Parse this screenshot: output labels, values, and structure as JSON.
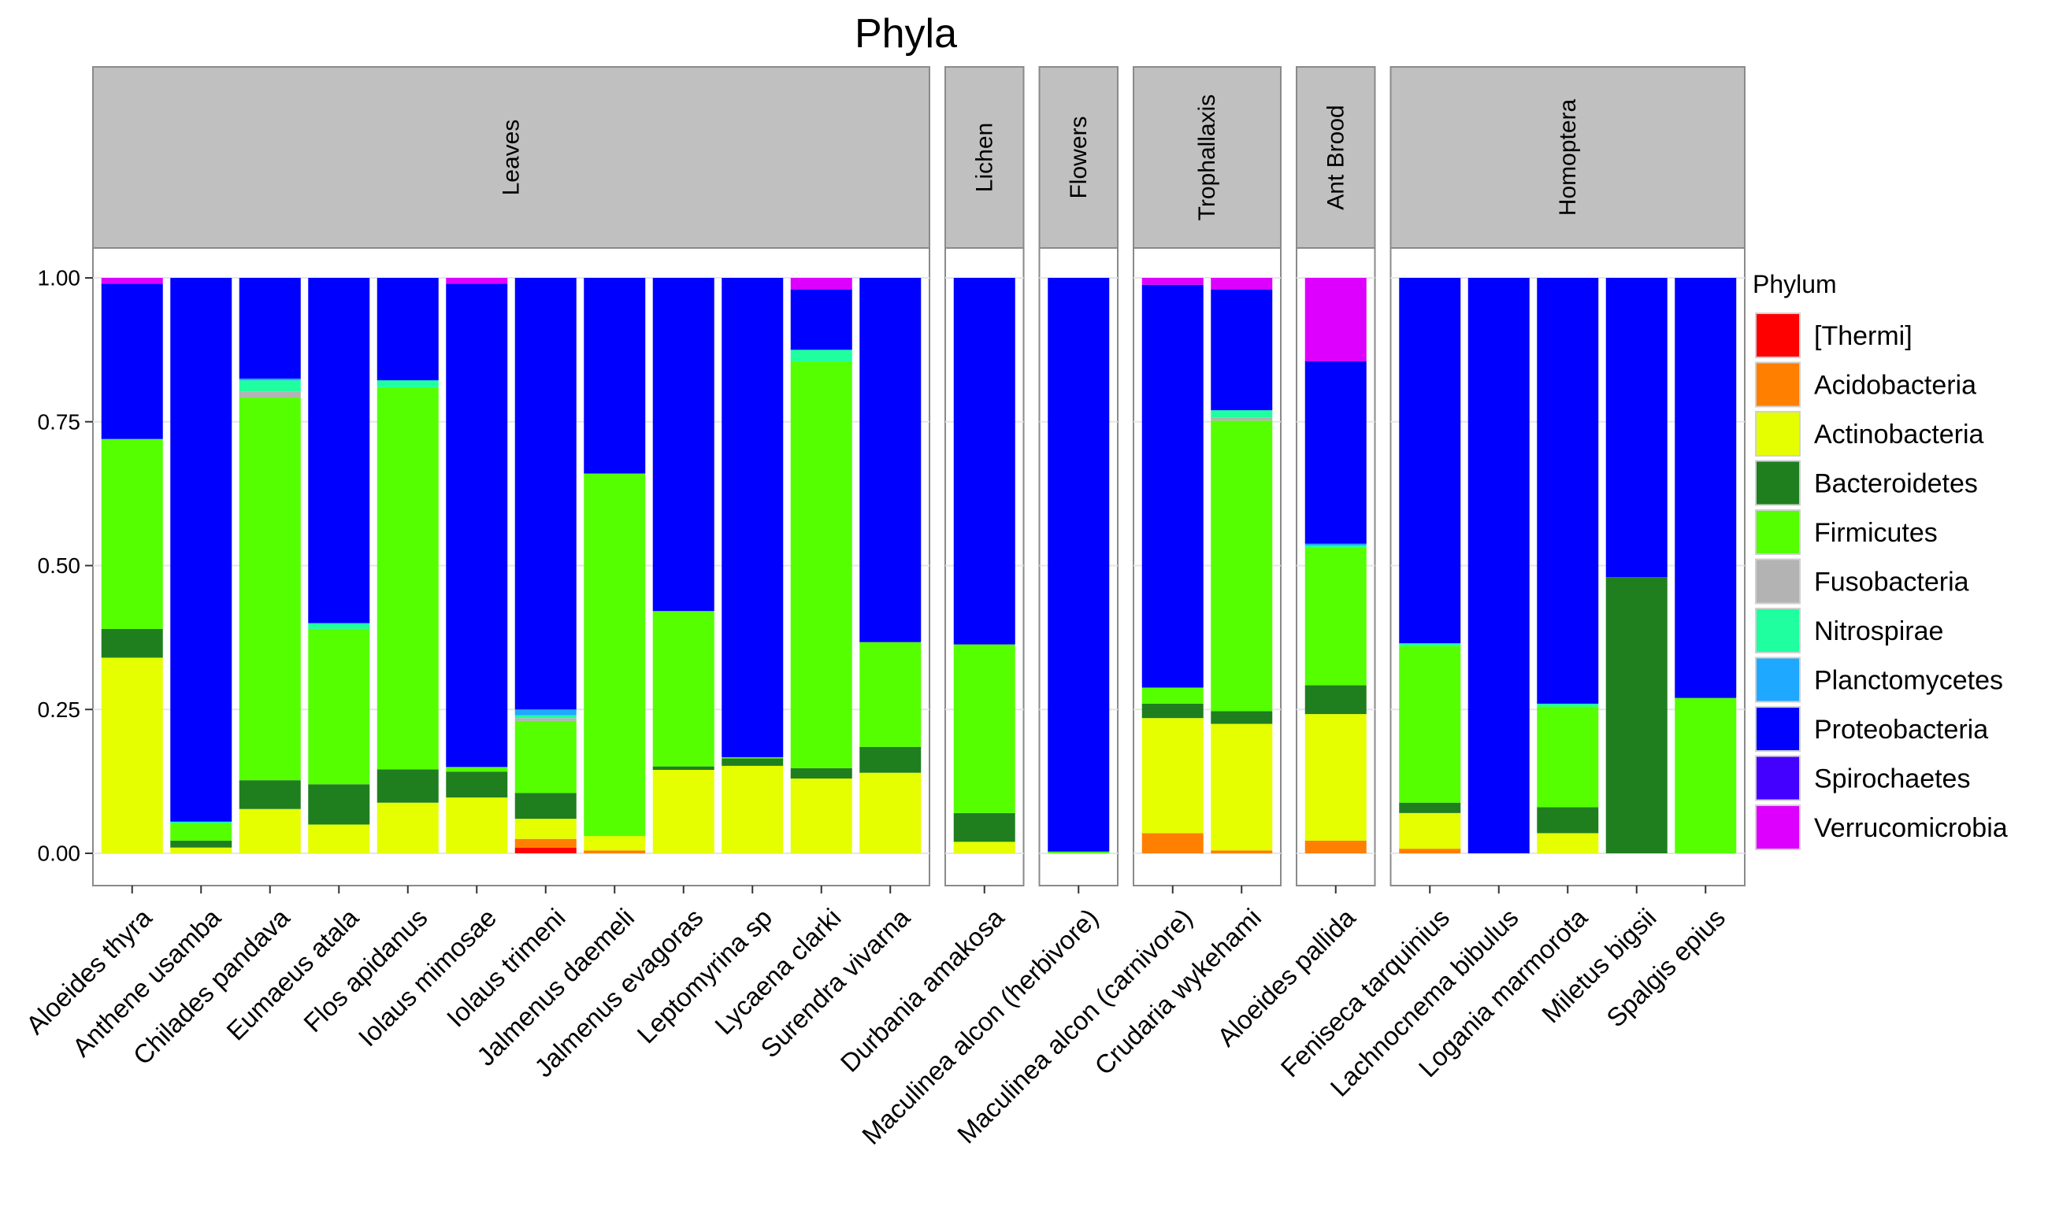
{
  "chart_data": {
    "type": "bar",
    "stacked": true,
    "title": "Phyla",
    "xlabel": "",
    "ylabel": "",
    "ylim": [
      0,
      1
    ],
    "yticks": [
      "0.00",
      "0.25",
      "0.50",
      "0.75",
      "1.00"
    ],
    "legend": {
      "title": "Phylum",
      "placement": "right",
      "entries": [
        {
          "name": "[Thermi]",
          "color": "#ff0000"
        },
        {
          "name": "Acidobacteria",
          "color": "#ff7f00"
        },
        {
          "name": "Actinobacteria",
          "color": "#e5ff00"
        },
        {
          "name": "Bacteroidetes",
          "color": "#1f7f1f"
        },
        {
          "name": "Firmicutes",
          "color": "#55ff00"
        },
        {
          "name": "Fusobacteria",
          "color": "#b3b3b3"
        },
        {
          "name": "Nitrospirae",
          "color": "#1fffa0"
        },
        {
          "name": "Planctomycetes",
          "color": "#1fa8ff"
        },
        {
          "name": "Proteobacteria",
          "color": "#0000ff"
        },
        {
          "name": "Spirochaetes",
          "color": "#4400ff"
        },
        {
          "name": "Verrucomicrobia",
          "color": "#dd00ff"
        }
      ]
    },
    "panels": [
      {
        "label": "Leaves",
        "samples": [
          {
            "name": "Aloeides thyra",
            "values": {
              "Actinobacteria": 0.34,
              "Bacteroidetes": 0.05,
              "Firmicutes": 0.33,
              "Proteobacteria": 0.27,
              "Verrucomicrobia": 0.01
            }
          },
          {
            "name": "Anthene usamba",
            "values": {
              "Actinobacteria": 0.01,
              "Bacteroidetes": 0.012,
              "Firmicutes": 0.03,
              "Nitrospirae": 0.003,
              "Proteobacteria": 0.945
            }
          },
          {
            "name": "Chilades pandava",
            "values": {
              "Actinobacteria": 0.077,
              "Bacteroidetes": 0.05,
              "Firmicutes": 0.665,
              "Fusobacteria": 0.01,
              "Nitrospirae": 0.02,
              "Planctomycetes": 0.003,
              "Proteobacteria": 0.175
            }
          },
          {
            "name": "Eumaeus atala",
            "values": {
              "Actinobacteria": 0.05,
              "Bacteroidetes": 0.07,
              "Firmicutes": 0.27,
              "Nitrospirae": 0.01,
              "Proteobacteria": 0.6
            }
          },
          {
            "name": "Flos apidanus",
            "values": {
              "Actinobacteria": 0.088,
              "Bacteroidetes": 0.058,
              "Firmicutes": 0.664,
              "Nitrospirae": 0.012,
              "Proteobacteria": 0.178
            }
          },
          {
            "name": "Iolaus mimosae",
            "values": {
              "Actinobacteria": 0.097,
              "Bacteroidetes": 0.045,
              "Firmicutes": 0.008,
              "Proteobacteria": 0.84,
              "Verrucomicrobia": 0.01
            }
          },
          {
            "name": "Iolaus trimeni",
            "values": {
              "[Thermi]": 0.01,
              "Acidobacteria": 0.015,
              "Actinobacteria": 0.035,
              "Bacteroidetes": 0.045,
              "Firmicutes": 0.125,
              "Fusobacteria": 0.005,
              "Nitrospirae": 0.005,
              "Planctomycetes": 0.01,
              "Proteobacteria": 0.75
            }
          },
          {
            "name": "Jalmenus daemeli",
            "values": {
              "Acidobacteria": 0.005,
              "Actinobacteria": 0.025,
              "Firmicutes": 0.63,
              "Proteobacteria": 0.34
            }
          },
          {
            "name": "Jalmenus evagoras",
            "values": {
              "Actinobacteria": 0.145,
              "Bacteroidetes": 0.006,
              "Firmicutes": 0.27,
              "Proteobacteria": 0.579
            }
          },
          {
            "name": "Leptomyrina sp",
            "values": {
              "Actinobacteria": 0.152,
              "Bacteroidetes": 0.013,
              "Firmicutes": 0.002,
              "Proteobacteria": 0.833
            }
          },
          {
            "name": "Lycaena clarki",
            "values": {
              "Actinobacteria": 0.13,
              "Bacteroidetes": 0.018,
              "Firmicutes": 0.707,
              "Nitrospirae": 0.02,
              "Proteobacteria": 0.105,
              "Verrucomicrobia": 0.02
            }
          },
          {
            "name": "Surendra vivarna",
            "values": {
              "Actinobacteria": 0.14,
              "Bacteroidetes": 0.045,
              "Firmicutes": 0.182,
              "Proteobacteria": 0.633
            }
          }
        ]
      },
      {
        "label": "Lichen",
        "samples": [
          {
            "name": "Durbania amakosa",
            "values": {
              "Actinobacteria": 0.02,
              "Bacteroidetes": 0.05,
              "Firmicutes": 0.293,
              "Proteobacteria": 0.637
            }
          }
        ]
      },
      {
        "label": "Flowers",
        "samples": [
          {
            "name": "Maculinea alcon (herbivore)",
            "values": {
              "Firmicutes": 0.003,
              "Proteobacteria": 0.997
            }
          }
        ]
      },
      {
        "label": "Trophallaxis",
        "samples": [
          {
            "name": "Maculinea alcon (carnivore)",
            "values": {
              "Acidobacteria": 0.035,
              "Actinobacteria": 0.2,
              "Bacteroidetes": 0.025,
              "Firmicutes": 0.028,
              "Proteobacteria": 0.7,
              "Verrucomicrobia": 0.012
            }
          },
          {
            "name": "Crudaria wykehami",
            "values": {
              "Acidobacteria": 0.005,
              "Actinobacteria": 0.22,
              "Bacteroidetes": 0.022,
              "Firmicutes": 0.505,
              "Fusobacteria": 0.005,
              "Nitrospirae": 0.013,
              "Proteobacteria": 0.21,
              "Verrucomicrobia": 0.02
            }
          }
        ]
      },
      {
        "label": "Ant Brood",
        "samples": [
          {
            "name": "Aloeides pallida",
            "values": {
              "Acidobacteria": 0.022,
              "Actinobacteria": 0.22,
              "Bacteroidetes": 0.05,
              "Firmicutes": 0.24,
              "Nitrospirae": 0.003,
              "Planctomycetes": 0.003,
              "Proteobacteria": 0.317,
              "Verrucomicrobia": 0.145
            }
          }
        ]
      },
      {
        "label": "Homoptera",
        "samples": [
          {
            "name": "Feniseca tarquinius",
            "values": {
              "Acidobacteria": 0.008,
              "Actinobacteria": 0.062,
              "Bacteroidetes": 0.018,
              "Firmicutes": 0.272,
              "Nitrospirae": 0.005,
              "Proteobacteria": 0.635
            }
          },
          {
            "name": "Lachnocnema bibulus",
            "values": {
              "Proteobacteria": 1.0
            }
          },
          {
            "name": "Logania marmorota",
            "values": {
              "Actinobacteria": 0.035,
              "Bacteroidetes": 0.045,
              "Firmicutes": 0.175,
              "Nitrospirae": 0.005,
              "Proteobacteria": 0.74
            }
          },
          {
            "name": "Miletus bigsii",
            "values": {
              "Bacteroidetes": 0.48,
              "Proteobacteria": 0.52
            }
          },
          {
            "name": "Spalgis epius",
            "values": {
              "Firmicutes": 0.27,
              "Proteobacteria": 0.73
            }
          }
        ]
      }
    ]
  }
}
